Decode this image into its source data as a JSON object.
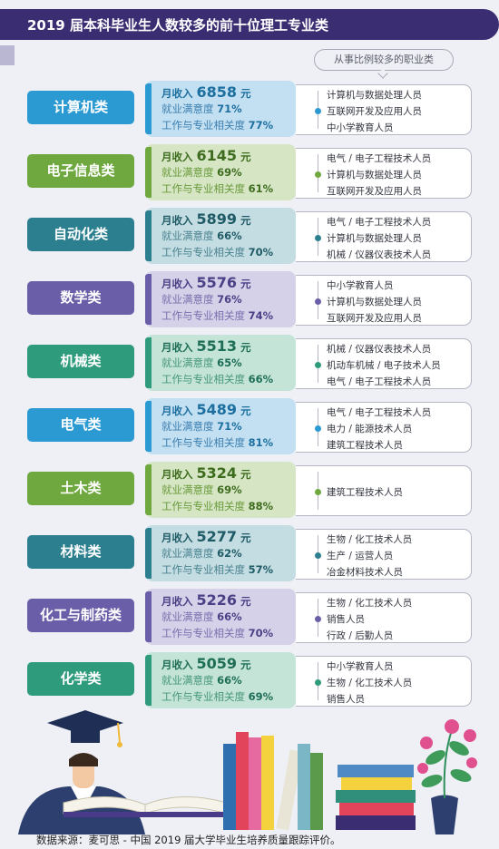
{
  "title": "2019 届本科毕业生人数较多的前十位理工专业类",
  "callout": "从事比例较多的职业类",
  "colors": {
    "header": "#3b2d72",
    "blue": "#2c9ad2",
    "green": "#6ea83f",
    "teal": "#2c7f8f",
    "purple": "#6b5ea8",
    "mint": "#2e9b7c"
  },
  "majors": [
    {
      "name": "计算机类",
      "income_label": "月收入",
      "income": "6858",
      "unit": "元",
      "sat_label": "就业满意度",
      "sat": "71%",
      "rel_label": "工作与专业相关度",
      "rel": "77%",
      "jobs": [
        "计算机与数据处理人员",
        "互联网开发及应用人员",
        "中小学教育人员"
      ]
    },
    {
      "name": "电子信息类",
      "income_label": "月收入",
      "income": "6145",
      "unit": "元",
      "sat_label": "就业满意度",
      "sat": "69%",
      "rel_label": "工作与专业相关度",
      "rel": "61%",
      "jobs": [
        "电气 / 电子工程技术人员",
        "计算机与数据处理人员",
        "互联网开发及应用人员"
      ]
    },
    {
      "name": "自动化类",
      "income_label": "月收入",
      "income": "5899",
      "unit": "元",
      "sat_label": "就业满意度",
      "sat": "66%",
      "rel_label": "工作与专业相关度",
      "rel": "70%",
      "jobs": [
        "电气 / 电子工程技术人员",
        "计算机与数据处理人员",
        "机械 / 仪器仪表技术人员"
      ]
    },
    {
      "name": "数学类",
      "income_label": "月收入",
      "income": "5576",
      "unit": "元",
      "sat_label": "就业满意度",
      "sat": "76%",
      "rel_label": "工作与专业相关度",
      "rel": "74%",
      "jobs": [
        "中小学教育人员",
        "计算机与数据处理人员",
        "互联网开发及应用人员"
      ]
    },
    {
      "name": "机械类",
      "income_label": "月收入",
      "income": "5513",
      "unit": "元",
      "sat_label": "就业满意度",
      "sat": "65%",
      "rel_label": "工作与专业相关度",
      "rel": "66%",
      "jobs": [
        "机械 / 仪器仪表技术人员",
        "机动车机械 / 电子技术人员",
        "电气 / 电子工程技术人员"
      ]
    },
    {
      "name": "电气类",
      "income_label": "月收入",
      "income": "5489",
      "unit": "元",
      "sat_label": "就业满意度",
      "sat": "71%",
      "rel_label": "工作与专业相关度",
      "rel": "81%",
      "jobs": [
        "电气 / 电子工程技术人员",
        "电力 / 能源技术人员",
        "建筑工程技术人员"
      ]
    },
    {
      "name": "土木类",
      "income_label": "月收入",
      "income": "5324",
      "unit": "元",
      "sat_label": "就业满意度",
      "sat": "69%",
      "rel_label": "工作与专业相关度",
      "rel": "88%",
      "jobs": [
        "建筑工程技术人员"
      ]
    },
    {
      "name": "材料类",
      "income_label": "月收入",
      "income": "5277",
      "unit": "元",
      "sat_label": "就业满意度",
      "sat": "62%",
      "rel_label": "工作与专业相关度",
      "rel": "57%",
      "jobs": [
        "生物 / 化工技术人员",
        "生产 / 运营人员",
        "冶金材料技术人员"
      ]
    },
    {
      "name": "化工与制药类",
      "income_label": "月收入",
      "income": "5226",
      "unit": "元",
      "sat_label": "就业满意度",
      "sat": "66%",
      "rel_label": "工作与专业相关度",
      "rel": "70%",
      "jobs": [
        "生物 / 化工技术人员",
        "销售人员",
        "行政 / 后勤人员"
      ]
    },
    {
      "name": "化学类",
      "income_label": "月收入",
      "income": "5059",
      "unit": "元",
      "sat_label": "就业满意度",
      "sat": "66%",
      "rel_label": "工作与专业相关度",
      "rel": "69%",
      "jobs": [
        "中小学教育人员",
        "生物 / 化工技术人员",
        "销售人员"
      ]
    }
  ],
  "source": "数据来源：麦可思 - 中国 2019 届大学毕业生培养质量跟踪评价。"
}
